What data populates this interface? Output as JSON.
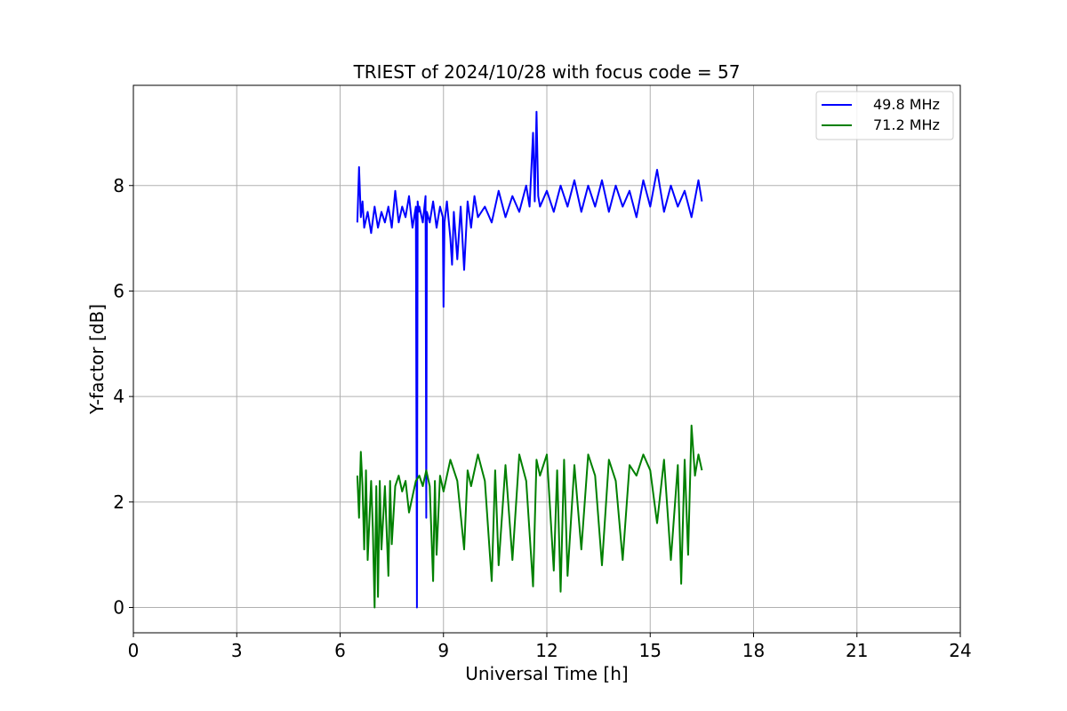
{
  "chart_data": {
    "type": "line",
    "title": "TRIEST of 2024/10/28 with focus code = 57",
    "xlabel": "Universal Time [h]",
    "ylabel": "Y-factor [dB]",
    "xlim": [
      0,
      24
    ],
    "ylim": [
      -0.48,
      9.9
    ],
    "xticks": [
      0,
      3,
      6,
      9,
      12,
      15,
      18,
      21,
      24
    ],
    "yticks": [
      0,
      2,
      4,
      6,
      8
    ],
    "grid": true,
    "legend_position": "top-right",
    "series": [
      {
        "name": "49.8 MHz",
        "color": "#0000ff",
        "x": [
          6.5,
          6.55,
          6.6,
          6.65,
          6.7,
          6.8,
          6.9,
          7.0,
          7.1,
          7.2,
          7.3,
          7.4,
          7.5,
          7.6,
          7.7,
          7.8,
          7.9,
          8.0,
          8.1,
          8.2,
          8.23,
          8.25,
          8.28,
          8.3,
          8.4,
          8.48,
          8.5,
          8.52,
          8.6,
          8.7,
          8.8,
          8.9,
          8.98,
          9.0,
          9.03,
          9.1,
          9.2,
          9.25,
          9.3,
          9.4,
          9.5,
          9.6,
          9.7,
          9.8,
          9.9,
          10.0,
          10.2,
          10.4,
          10.6,
          10.8,
          11.0,
          11.2,
          11.4,
          11.5,
          11.6,
          11.65,
          11.7,
          11.75,
          11.8,
          12.0,
          12.2,
          12.4,
          12.6,
          12.8,
          13.0,
          13.2,
          13.4,
          13.6,
          13.8,
          14.0,
          14.2,
          14.4,
          14.6,
          14.8,
          15.0,
          15.2,
          15.4,
          15.6,
          15.8,
          16.0,
          16.2,
          16.4,
          16.5
        ],
        "y": [
          7.3,
          8.35,
          7.4,
          7.7,
          7.2,
          7.5,
          7.1,
          7.6,
          7.2,
          7.5,
          7.3,
          7.6,
          7.2,
          7.9,
          7.3,
          7.6,
          7.4,
          7.8,
          7.2,
          7.6,
          0.0,
          7.7,
          7.5,
          7.6,
          7.3,
          7.8,
          1.7,
          7.5,
          7.3,
          7.7,
          7.2,
          7.6,
          7.4,
          5.7,
          7.3,
          7.7,
          7.0,
          6.5,
          7.5,
          6.6,
          7.6,
          6.4,
          7.7,
          7.2,
          7.8,
          7.4,
          7.6,
          7.3,
          7.9,
          7.4,
          7.8,
          7.5,
          8.0,
          7.6,
          9.0,
          7.7,
          9.4,
          7.8,
          7.6,
          7.9,
          7.5,
          8.0,
          7.6,
          8.1,
          7.5,
          8.0,
          7.6,
          8.1,
          7.5,
          8.0,
          7.6,
          7.9,
          7.4,
          8.1,
          7.6,
          8.3,
          7.5,
          8.0,
          7.6,
          7.9,
          7.4,
          8.1,
          7.7
        ]
      },
      {
        "name": "71.2 MHz",
        "color": "#008000",
        "x": [
          6.5,
          6.55,
          6.6,
          6.65,
          6.7,
          6.75,
          6.8,
          6.9,
          6.95,
          7.0,
          7.05,
          7.1,
          7.15,
          7.2,
          7.3,
          7.4,
          7.45,
          7.5,
          7.6,
          7.7,
          7.8,
          7.9,
          8.0,
          8.2,
          8.3,
          8.4,
          8.5,
          8.6,
          8.7,
          8.75,
          8.8,
          8.9,
          9.0,
          9.2,
          9.4,
          9.6,
          9.7,
          9.8,
          10.0,
          10.2,
          10.4,
          10.5,
          10.6,
          10.8,
          11.0,
          11.2,
          11.4,
          11.6,
          11.7,
          11.8,
          12.0,
          12.2,
          12.3,
          12.4,
          12.5,
          12.6,
          12.8,
          13.0,
          13.2,
          13.4,
          13.6,
          13.8,
          14.0,
          14.2,
          14.4,
          14.6,
          14.8,
          15.0,
          15.2,
          15.4,
          15.6,
          15.8,
          15.9,
          16.0,
          16.1,
          16.2,
          16.3,
          16.4,
          16.5
        ],
        "y": [
          2.5,
          1.7,
          2.95,
          2.3,
          1.1,
          2.6,
          0.9,
          2.4,
          1.5,
          0.0,
          2.3,
          0.2,
          2.4,
          1.1,
          2.3,
          0.6,
          2.4,
          1.2,
          2.3,
          2.5,
          2.2,
          2.4,
          1.8,
          2.4,
          2.5,
          2.3,
          2.6,
          2.3,
          0.5,
          2.4,
          1.0,
          2.5,
          2.2,
          2.8,
          2.4,
          1.1,
          2.6,
          2.3,
          2.9,
          2.4,
          0.5,
          2.6,
          0.8,
          2.7,
          0.9,
          2.9,
          2.4,
          0.4,
          2.8,
          2.5,
          2.9,
          0.7,
          2.6,
          0.3,
          2.8,
          0.6,
          2.7,
          1.1,
          2.9,
          2.5,
          0.8,
          2.8,
          2.4,
          0.9,
          2.7,
          2.5,
          2.9,
          2.6,
          1.6,
          2.8,
          0.9,
          2.7,
          0.45,
          2.8,
          1.0,
          3.45,
          2.5,
          2.9,
          2.6
        ]
      }
    ]
  }
}
